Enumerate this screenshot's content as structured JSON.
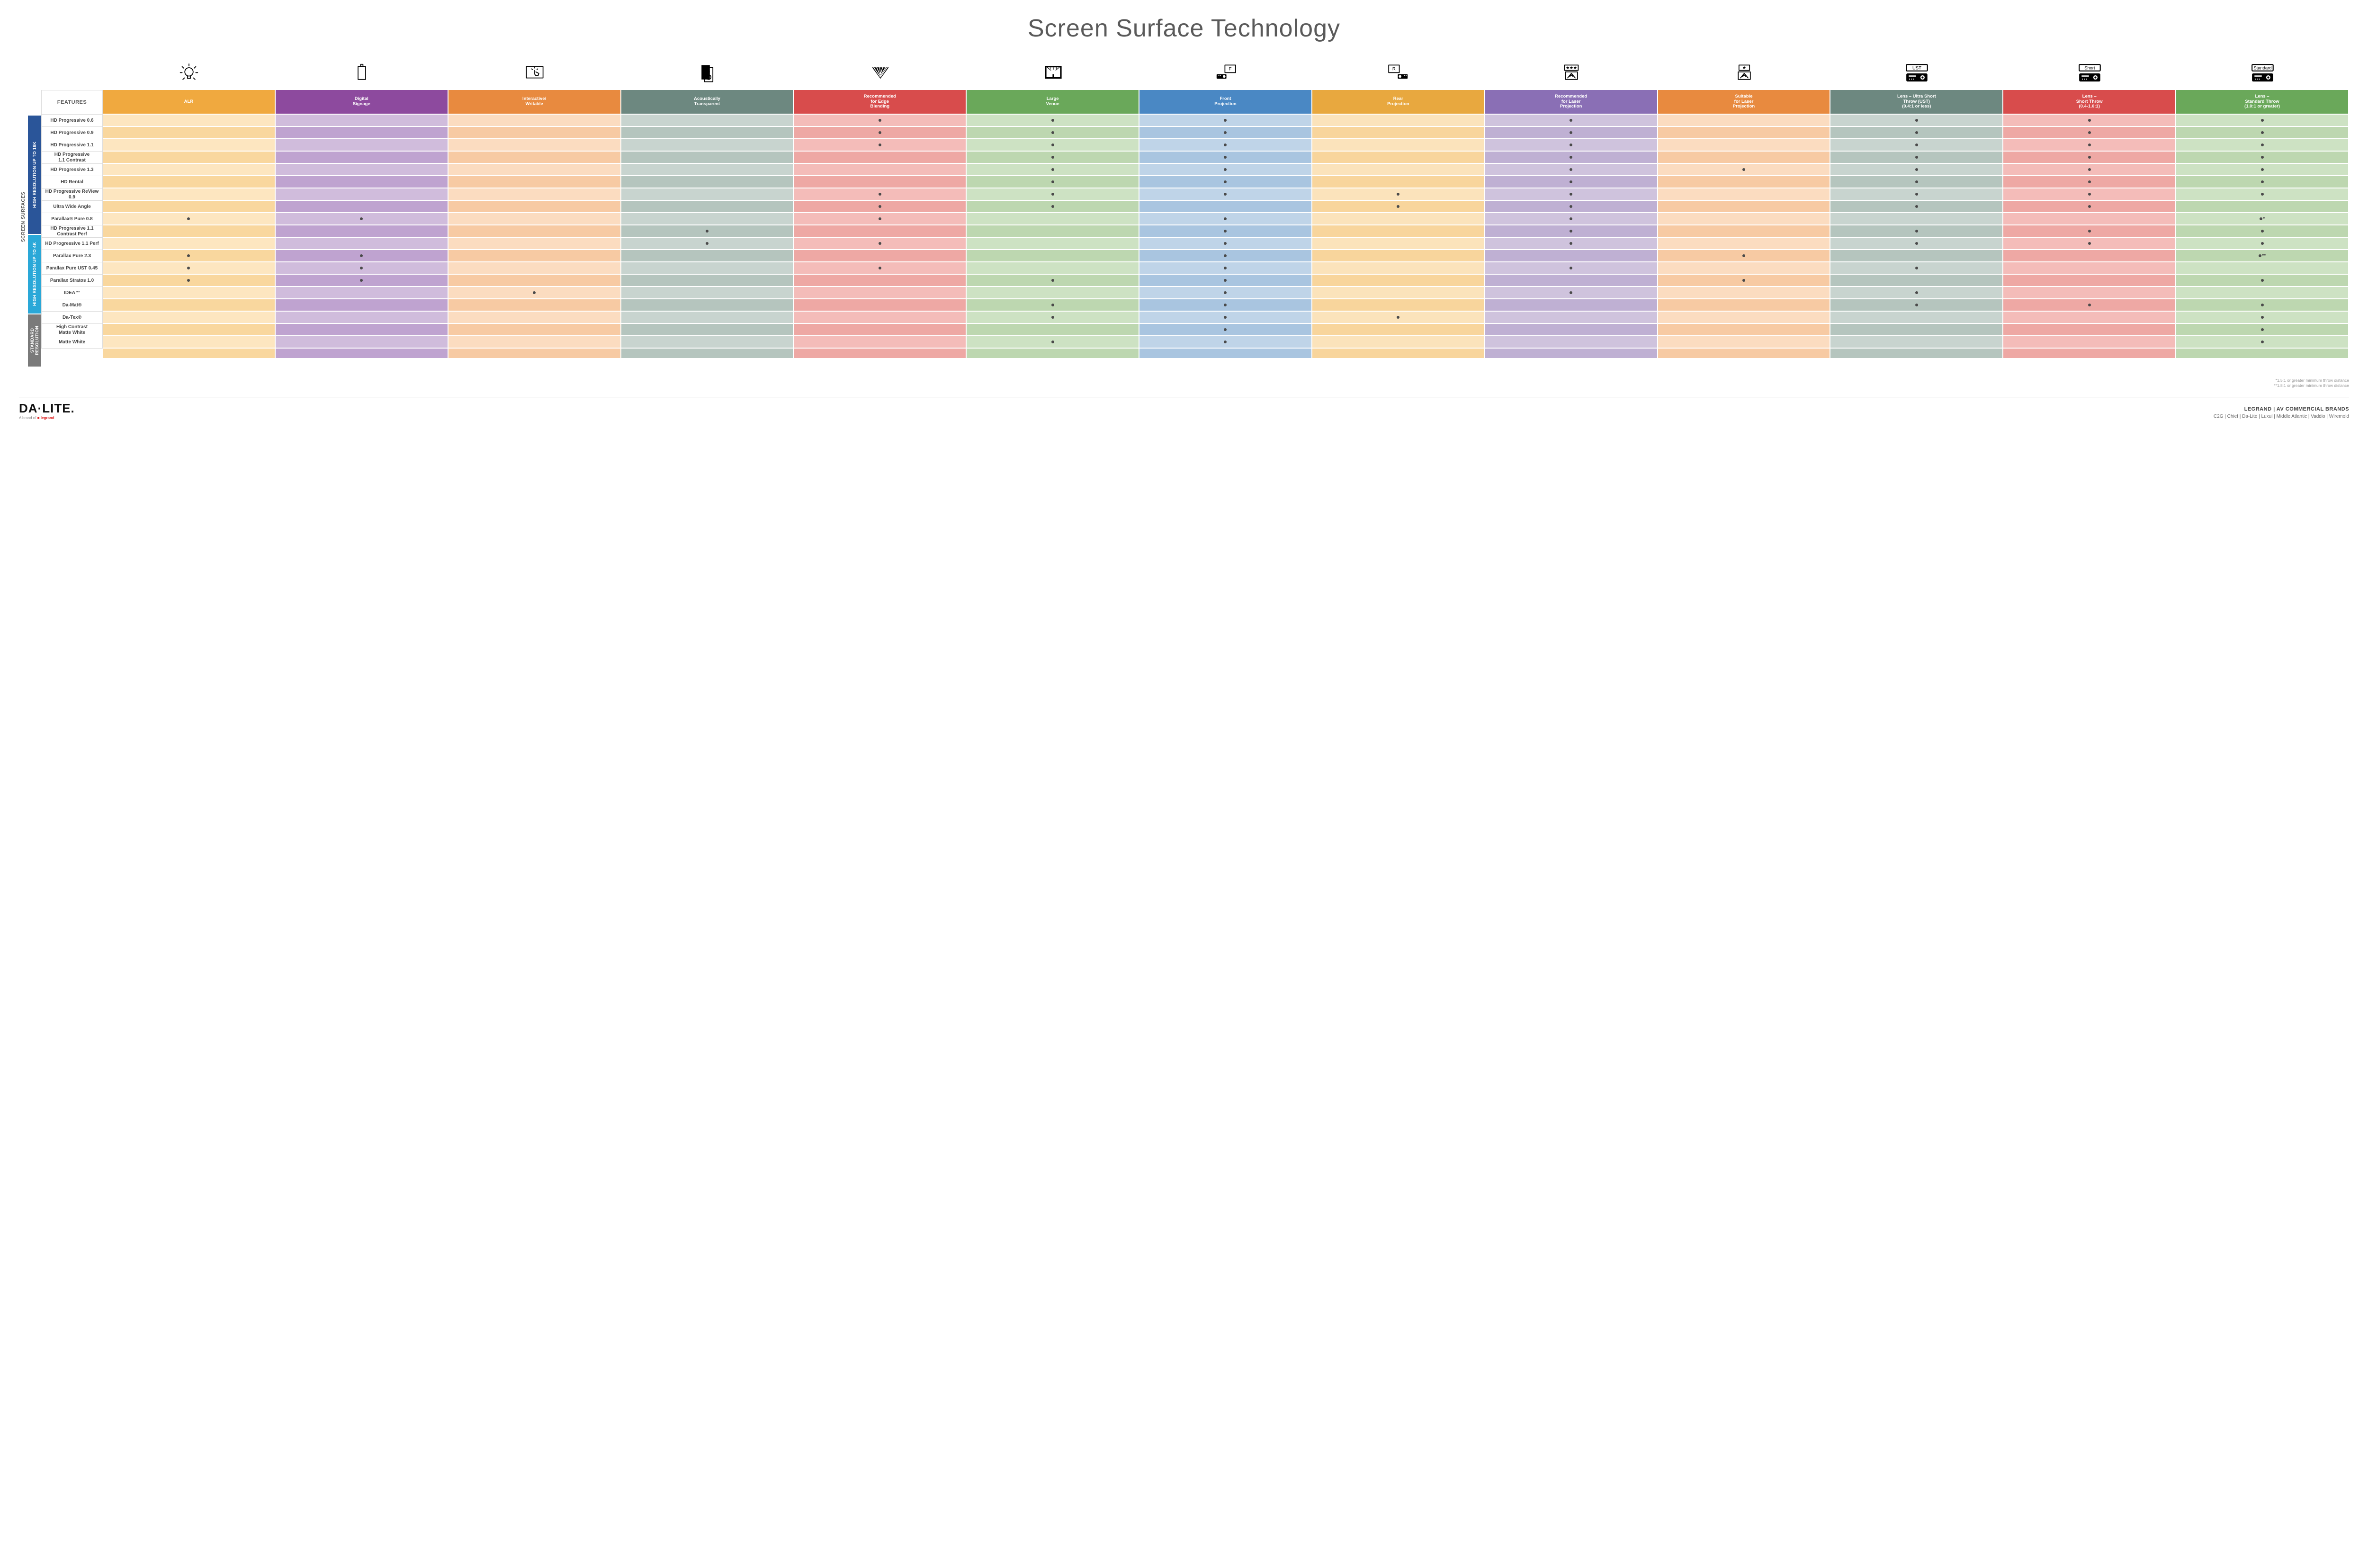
{
  "title": "Screen Surface Technology",
  "outer_label": "SCREEN SURFACES",
  "features_label": "FEATURES",
  "columns": [
    {
      "id": "alr",
      "label": "ALR",
      "color": "#f0a93f"
    },
    {
      "id": "signage",
      "label": "Digital\nSignage",
      "color": "#8d4a9e"
    },
    {
      "id": "interactive",
      "label": "Interactive/\nWritable",
      "color": "#e88a3f"
    },
    {
      "id": "acoustic",
      "label": "Acoustically\nTransparent",
      "color": "#6d8880"
    },
    {
      "id": "edge",
      "label": "Recommended\nfor Edge\nBlending",
      "color": "#d84c4c"
    },
    {
      "id": "large",
      "label": "Large\nVenue",
      "color": "#6aa85a"
    },
    {
      "id": "front",
      "label": "Front\nProjection",
      "color": "#4a88c4"
    },
    {
      "id": "rear",
      "label": "Rear\nProjection",
      "color": "#e8a83f"
    },
    {
      "id": "reclaser",
      "label": "Recommended\nfor Laser\nProjection",
      "color": "#8a6fb5"
    },
    {
      "id": "suitlaser",
      "label": "Suitable\nfor Laser\nProjection",
      "color": "#e88a3f"
    },
    {
      "id": "ust",
      "label": "Lens – Ultra Short\nThrow (UST)\n(0.4:1 or less)",
      "color": "#6d8880"
    },
    {
      "id": "short",
      "label": "Lens –\nShort Throw\n(0.4-1.0:1)",
      "color": "#d84c4c"
    },
    {
      "id": "std",
      "label": "Lens –\nStandard Throw\n(1.0:1 or greater)",
      "color": "#6aa85a"
    }
  ],
  "column_tints": {
    "alr": [
      "#fde6c0",
      "#f9d79e"
    ],
    "signage": [
      "#d0bcdc",
      "#bfa3d0"
    ],
    "interactive": [
      "#fbdcc0",
      "#f7caa3"
    ],
    "acoustic": [
      "#c8d4cf",
      "#b5c5be"
    ],
    "edge": [
      "#f4bcb9",
      "#eea8a4"
    ],
    "large": [
      "#cde2c3",
      "#bdd7b0"
    ],
    "front": [
      "#bfd4e8",
      "#a9c5e0"
    ],
    "rear": [
      "#fbe3bb",
      "#f8d59c"
    ],
    "reclaser": [
      "#cfc3dd",
      "#bfb0d3"
    ],
    "suitlaser": [
      "#fbdcc0",
      "#f7caa3"
    ],
    "ust": [
      "#c8d4cf",
      "#b5c5be"
    ],
    "short": [
      "#f4bcb9",
      "#eea8a4"
    ],
    "std": [
      "#cde2c3",
      "#bdd7b0"
    ]
  },
  "groups": [
    {
      "id": "g16k",
      "label": "HIGH RESOLUTION UP TO 16K",
      "color": "#2a5599",
      "rows": [
        {
          "label": "HD Progressive 0.6",
          "cells": {
            "edge": ".",
            "large": ".",
            "front": ".",
            "reclaser": ".",
            "ust": ".",
            "short": ".",
            "std": "."
          }
        },
        {
          "label": "HD Progressive 0.9",
          "cells": {
            "edge": ".",
            "large": ".",
            "front": ".",
            "reclaser": ".",
            "ust": ".",
            "short": ".",
            "std": "."
          }
        },
        {
          "label": "HD Progressive 1.1",
          "cells": {
            "edge": ".",
            "large": ".",
            "front": ".",
            "reclaser": ".",
            "ust": ".",
            "short": ".",
            "std": "."
          }
        },
        {
          "label": "HD Progressive\n1.1 Contrast",
          "cells": {
            "large": ".",
            "front": ".",
            "reclaser": ".",
            "ust": ".",
            "short": ".",
            "std": "."
          }
        },
        {
          "label": "HD Progressive 1.3",
          "cells": {
            "large": ".",
            "front": ".",
            "reclaser": ".",
            "suitlaser": ".",
            "ust": ".",
            "short": ".",
            "std": "."
          }
        },
        {
          "label": "HD Rental",
          "cells": {
            "large": ".",
            "front": ".",
            "reclaser": ".",
            "ust": ".",
            "short": ".",
            "std": "."
          }
        },
        {
          "label": "HD Progressive ReView 0.9",
          "cells": {
            "edge": ".",
            "large": ".",
            "front": ".",
            "rear": ".",
            "reclaser": ".",
            "ust": ".",
            "short": ".",
            "std": "."
          }
        },
        {
          "label": "Ultra Wide Angle",
          "cells": {
            "edge": ".",
            "large": ".",
            "rear": ".",
            "reclaser": ".",
            "ust": ".",
            "short": "."
          }
        },
        {
          "label": "Parallax® Pure 0.8",
          "cells": {
            "alr": ".",
            "signage": ".",
            "edge": ".",
            "front": ".",
            "reclaser": ".",
            "std": ".*"
          }
        }
      ]
    },
    {
      "id": "g4k",
      "label": "HIGH RESOLUTION UP TO 4K",
      "color": "#2aa8d8",
      "rows": [
        {
          "label": "HD Progressive 1.1\nContrast Perf",
          "cells": {
            "acoustic": ".",
            "front": ".",
            "reclaser": ".",
            "ust": ".",
            "short": ".",
            "std": "."
          }
        },
        {
          "label": "HD Progressive 1.1 Perf",
          "cells": {
            "acoustic": ".",
            "edge": ".",
            "front": ".",
            "reclaser": ".",
            "ust": ".",
            "short": ".",
            "std": "."
          }
        },
        {
          "label": "Parallax Pure 2.3",
          "cells": {
            "alr": ".",
            "signage": ".",
            "front": ".",
            "suitlaser": ".",
            "std": ".**"
          }
        },
        {
          "label": "Parallax Pure UST 0.45",
          "cells": {
            "alr": ".",
            "signage": ".",
            "edge": ".",
            "front": ".",
            "reclaser": ".",
            "ust": "."
          }
        },
        {
          "label": "Parallax Stratos 1.0",
          "cells": {
            "alr": ".",
            "signage": ".",
            "large": ".",
            "front": ".",
            "suitlaser": ".",
            "std": "."
          }
        },
        {
          "label": "IDEA™",
          "cells": {
            "interactive": ".",
            "front": ".",
            "reclaser": ".",
            "ust": "."
          }
        }
      ]
    },
    {
      "id": "gstd",
      "label": "STANDARD\nRESOLUTION",
      "color": "#7a7a7a",
      "rows": [
        {
          "label": "Da-Mat®",
          "cells": {
            "large": ".",
            "front": ".",
            "ust": ".",
            "short": ".",
            "std": "."
          }
        },
        {
          "label": "Da-Tex®",
          "cells": {
            "large": ".",
            "front": ".",
            "rear": ".",
            "std": "."
          }
        },
        {
          "label": "High Contrast\nMatte White",
          "cells": {
            "front": ".",
            "std": "."
          }
        },
        {
          "label": "Matte White",
          "cells": {
            "large": ".",
            "front": ".",
            "std": "."
          }
        }
      ]
    }
  ],
  "footnotes": [
    "*1.5:1 or greater minimum throw distance",
    "**1.8:1 or greater minimum throw distance"
  ],
  "footer": {
    "logo": "DA·LITE.",
    "logo_sub_prefix": "A brand of ",
    "logo_sub_brand": "legrand",
    "brands_title": "LEGRAND | AV COMMERCIAL BRANDS",
    "brands_list": "C2G  |  Chief  |  Da-Lite  |  Luxul  |  Middle Atlantic  |  Vaddio  |  Wiremold"
  },
  "icons": [
    "bulb",
    "signage",
    "touch",
    "speaker",
    "wedge",
    "venue",
    "front-proj",
    "rear-proj",
    "laser-rec",
    "laser-suit",
    "ust-proj",
    "short-proj",
    "std-proj"
  ]
}
